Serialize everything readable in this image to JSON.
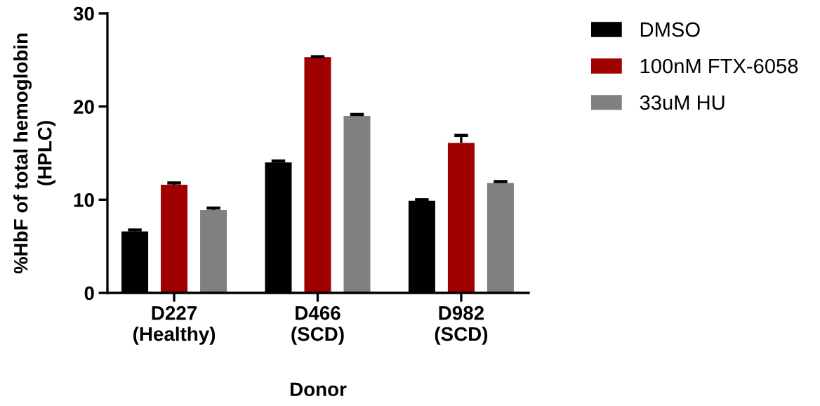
{
  "chart_data": {
    "type": "bar",
    "xlabel": "Donor",
    "ylabel": "%HbF of total hemoglobin\n(HPLC)",
    "categories": [
      "D227\n(Healthy)",
      "D466\n(SCD)",
      "D982\n(SCD)"
    ],
    "series": [
      {
        "name": "DMSO",
        "color": "#000000",
        "values": [
          6.6,
          14.0,
          9.9
        ],
        "errors": [
          [
            6.6,
            6.75
          ],
          [
            14.0,
            14.15
          ],
          [
            9.9,
            10.0
          ]
        ]
      },
      {
        "name": "100nM FTX-6058",
        "color": "#a00000",
        "values": [
          11.6,
          25.3,
          16.1
        ],
        "errors": [
          [
            11.6,
            11.8
          ],
          [
            25.3,
            25.35
          ],
          [
            16.1,
            16.9
          ]
        ]
      },
      {
        "name": "33uM HU",
        "color": "#808080",
        "values": [
          8.9,
          19.0,
          11.8
        ],
        "errors": [
          [
            8.9,
            9.1
          ],
          [
            19.0,
            19.15
          ],
          [
            11.8,
            11.95
          ]
        ]
      }
    ],
    "ylim": [
      0,
      30
    ],
    "yticks": [
      0,
      10,
      20,
      30
    ],
    "grid": false,
    "legend": "top right"
  }
}
